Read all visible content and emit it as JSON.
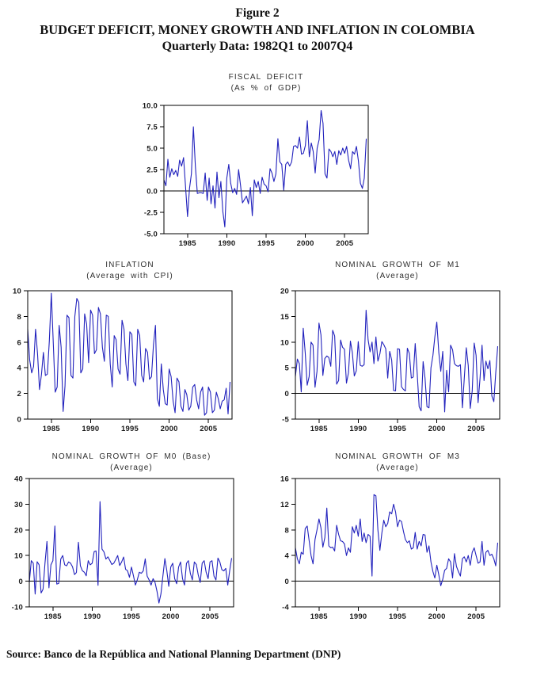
{
  "header": {
    "figure_label": "Figure 2",
    "title": "BUDGET DEFICIT, MONEY GROWTH AND INFLATION IN COLOMBIA",
    "subtitle": "Quarterly Data: 1982Q1 to 2007Q4"
  },
  "source_note": "Source: Banco de la República and National Planning Department (DNP)",
  "colors": {
    "line": "#2222bd",
    "axis": "#000000",
    "tick_label": "#1a1a1a",
    "chart_title": "#2e2e2e"
  },
  "x_axis": {
    "range": [
      1982,
      2008
    ],
    "ticks": [
      1985,
      1990,
      1995,
      2000,
      2005
    ],
    "unit": "year",
    "frequency": "quarterly"
  },
  "chart_data": [
    {
      "id": "fiscal-deficit",
      "type": "line",
      "title": "FISCAL DEFICIT",
      "subtitle": "(As % of GDP)",
      "ylim": [
        -5.0,
        10.0
      ],
      "yticks": [
        -5.0,
        -2.5,
        0.0,
        2.5,
        5.0,
        7.5,
        10.0
      ],
      "ytick_labels": [
        "-5.0",
        "-2.5",
        "0.0",
        "2.5",
        "5.0",
        "7.5",
        "10.0"
      ],
      "zero_line": true,
      "x_start": 1982.0,
      "x_step": 0.25,
      "values": [
        1.3,
        0.6,
        3.7,
        1.6,
        2.6,
        1.9,
        2.4,
        1.7,
        3.6,
        2.9,
        3.9,
        0.5,
        -3.0,
        0.3,
        2.0,
        7.5,
        2.9,
        -0.3,
        -0.2,
        -0.2,
        -0.3,
        2.1,
        -1.1,
        1.5,
        -1.5,
        0.6,
        -2.0,
        2.2,
        -0.8,
        1.1,
        -2.4,
        -4.2,
        1.5,
        3.1,
        0.9,
        -0.2,
        0.3,
        -0.4,
        2.5,
        0.6,
        -1.4,
        -1.0,
        -0.6,
        -1.5,
        0.4,
        -2.9,
        1.3,
        0.4,
        1.1,
        -0.3,
        1.6,
        0.8,
        0.6,
        -0.1,
        2.6,
        2.1,
        1.1,
        2.0,
        6.1,
        3.4,
        3.1,
        0.1,
        3.1,
        3.4,
        2.9,
        3.4,
        5.2,
        5.3,
        5.0,
        6.3,
        4.3,
        4.4,
        5.3,
        8.2,
        4.0,
        5.6,
        4.6,
        2.1,
        5.0,
        6.0,
        9.4,
        7.9,
        2.0,
        1.5,
        4.9,
        4.6,
        4.0,
        4.6,
        3.1,
        4.7,
        4.2,
        5.0,
        4.4,
        5.2,
        3.6,
        2.6,
        4.6,
        4.3,
        5.2,
        3.5,
        0.9,
        0.3,
        1.5,
        6.1
      ]
    },
    {
      "id": "inflation",
      "type": "line",
      "title": "INFLATION",
      "subtitle": "(Average with CPI)",
      "ylim": [
        0,
        10
      ],
      "yticks": [
        0,
        2,
        4,
        6,
        8,
        10
      ],
      "ytick_labels": [
        "0",
        "2",
        "4",
        "6",
        "8",
        "10"
      ],
      "zero_line": false,
      "x_start": 1982.0,
      "x_step": 0.25,
      "values": [
        7.0,
        4.6,
        3.6,
        4.1,
        7.0,
        5.1,
        2.3,
        3.5,
        5.2,
        3.4,
        3.5,
        6.1,
        9.8,
        5.9,
        2.1,
        2.5,
        7.3,
        5.6,
        0.6,
        2.6,
        8.1,
        7.9,
        3.4,
        3.2,
        8.0,
        9.4,
        9.1,
        3.6,
        3.9,
        8.2,
        7.4,
        4.4,
        8.5,
        8.1,
        5.1,
        5.4,
        8.7,
        8.2,
        5.6,
        4.5,
        8.1,
        8.0,
        4.3,
        2.5,
        6.5,
        6.2,
        3.9,
        3.5,
        7.7,
        7.0,
        4.3,
        3.0,
        6.8,
        6.6,
        2.9,
        2.6,
        7.0,
        6.5,
        3.4,
        2.9,
        5.5,
        5.2,
        3.1,
        3.3,
        5.8,
        7.3,
        1.6,
        1.0,
        4.3,
        2.3,
        1.2,
        1.1,
        3.9,
        3.3,
        1.4,
        0.5,
        3.2,
        2.9,
        1.0,
        0.6,
        2.3,
        1.9,
        0.7,
        1.0,
        2.5,
        2.7,
        1.5,
        0.8,
        2.1,
        2.5,
        0.3,
        0.5,
        2.5,
        2.1,
        0.5,
        0.7,
        2.1,
        1.6,
        0.8,
        1.4,
        1.5,
        2.4,
        0.4,
        2.9
      ]
    },
    {
      "id": "nominal-growth-m1",
      "type": "line",
      "title": "NOMINAL GROWTH OF M1",
      "subtitle": "(Average)",
      "ylim": [
        -5,
        20
      ],
      "yticks": [
        -5,
        0,
        5,
        10,
        15,
        20
      ],
      "ytick_labels": [
        "-5",
        "0",
        "5",
        "10",
        "15",
        "20"
      ],
      "zero_line": true,
      "x_start": 1982.0,
      "x_step": 0.25,
      "values": [
        3.3,
        6.7,
        5.8,
        0.3,
        12.7,
        8.0,
        1.6,
        3.3,
        10.0,
        9.4,
        1.2,
        4.3,
        13.7,
        11.4,
        3.5,
        6.8,
        7.3,
        7.0,
        5.3,
        12.3,
        11.2,
        1.8,
        2.5,
        10.4,
        9.0,
        8.6,
        2.0,
        4.0,
        10.2,
        8.0,
        3.4,
        4.4,
        10.1,
        5.5,
        5.3,
        5.6,
        16.2,
        10.5,
        8.1,
        10.0,
        5.8,
        11.0,
        6.3,
        7.7,
        10.1,
        9.5,
        8.7,
        3.0,
        8.2,
        6.5,
        0.6,
        0.5,
        8.7,
        8.6,
        1.3,
        0.8,
        0.5,
        8.8,
        7.8,
        3.0,
        3.2,
        9.7,
        4.0,
        -2.6,
        -3.4,
        6.2,
        3.0,
        -2.6,
        -2.8,
        5.0,
        7.4,
        11.0,
        13.9,
        8.0,
        4.3,
        8.2,
        -3.6,
        4.5,
        0.3,
        9.4,
        8.5,
        5.8,
        5.4,
        5.3,
        5.6,
        -2.8,
        3.0,
        8.9,
        5.4,
        -2.9,
        0.5,
        9.8,
        7.4,
        -1.8,
        3.0,
        9.4,
        2.5,
        6.3,
        4.8,
        6.4,
        -0.5,
        -1.6,
        4.0,
        9.2
      ]
    },
    {
      "id": "nominal-growth-m0",
      "type": "line",
      "title": "NOMINAL GROWTH OF M0 (Base)",
      "subtitle": "(Average)",
      "ylim": [
        -10,
        40
      ],
      "yticks": [
        -10,
        0,
        10,
        20,
        30,
        40
      ],
      "ytick_labels": [
        "-10",
        "0",
        "10",
        "20",
        "30",
        "40"
      ],
      "zero_line": true,
      "x_start": 1982.0,
      "x_step": 0.25,
      "values": [
        -0.5,
        8.0,
        7.0,
        -5.0,
        7.6,
        6.4,
        -4.6,
        -3.1,
        7.0,
        15.5,
        -2.6,
        6.4,
        8.0,
        21.5,
        -1.1,
        -0.8,
        8.6,
        10.0,
        6.4,
        6.0,
        7.5,
        7.0,
        5.6,
        2.6,
        3.4,
        15.2,
        6.0,
        4.1,
        3.5,
        2.1,
        8.0,
        6.4,
        7.0,
        11.5,
        11.8,
        -1.6,
        31.0,
        12.5,
        11.4,
        8.6,
        9.5,
        8.1,
        6.5,
        7.0,
        8.5,
        10.0,
        6.1,
        7.5,
        9.4,
        4.6,
        4.1,
        1.5,
        5.5,
        2.1,
        -1.5,
        0.6,
        3.5,
        3.1,
        4.0,
        8.7,
        2.0,
        0.5,
        -1.5,
        1.0,
        -0.5,
        -4.0,
        -8.5,
        -5.0,
        2.0,
        8.8,
        4.0,
        -2.0,
        5.5,
        7.0,
        1.0,
        -1.0,
        5.5,
        7.5,
        1.0,
        -1.5,
        7.0,
        8.0,
        3.0,
        0.5,
        7.5,
        6.5,
        2.5,
        -0.5,
        7.0,
        8.0,
        3.5,
        1.0,
        7.5,
        8.0,
        2.0,
        0.5,
        9.0,
        7.5,
        4.5,
        4.0,
        5.0,
        -1.5,
        4.0,
        9.0
      ]
    },
    {
      "id": "nominal-growth-m3",
      "type": "line",
      "title": "NOMINAL GROWTH OF M3",
      "subtitle": "(Average)",
      "ylim": [
        -4,
        16
      ],
      "yticks": [
        -4,
        0,
        4,
        8,
        12,
        16
      ],
      "ytick_labels": [
        "-4",
        "0",
        "4",
        "8",
        "12",
        "16"
      ],
      "zero_line": true,
      "x_start": 1982.0,
      "x_step": 0.25,
      "values": [
        5.2,
        3.5,
        2.7,
        4.5,
        4.2,
        8.2,
        8.6,
        6.3,
        4.0,
        2.7,
        6.5,
        8.0,
        9.7,
        8.3,
        5.3,
        6.8,
        11.4,
        5.5,
        5.2,
        5.3,
        4.7,
        8.7,
        7.3,
        6.3,
        6.2,
        5.8,
        4.0,
        5.2,
        4.5,
        8.5,
        7.5,
        8.7,
        7.0,
        9.7,
        6.2,
        7.5,
        6.0,
        7.3,
        7.0,
        0.8,
        13.5,
        13.3,
        8.0,
        4.8,
        7.5,
        9.5,
        8.5,
        9.0,
        10.8,
        10.5,
        12.0,
        10.8,
        8.5,
        9.5,
        9.3,
        7.8,
        6.5,
        6.0,
        6.3,
        5.0,
        5.2,
        7.6,
        5.0,
        6.2,
        5.5,
        7.3,
        7.2,
        4.5,
        5.5,
        3.0,
        1.5,
        0.5,
        2.5,
        1.0,
        -0.7,
        0.3,
        1.7,
        2.0,
        3.5,
        3.0,
        0.5,
        4.3,
        2.3,
        1.5,
        0.8,
        3.5,
        3.8,
        3.0,
        4.0,
        2.5,
        4.5,
        5.2,
        4.0,
        2.8,
        3.0,
        6.2,
        2.5,
        4.5,
        4.8,
        4.0,
        4.2,
        3.5,
        2.4,
        6.0
      ]
    }
  ]
}
